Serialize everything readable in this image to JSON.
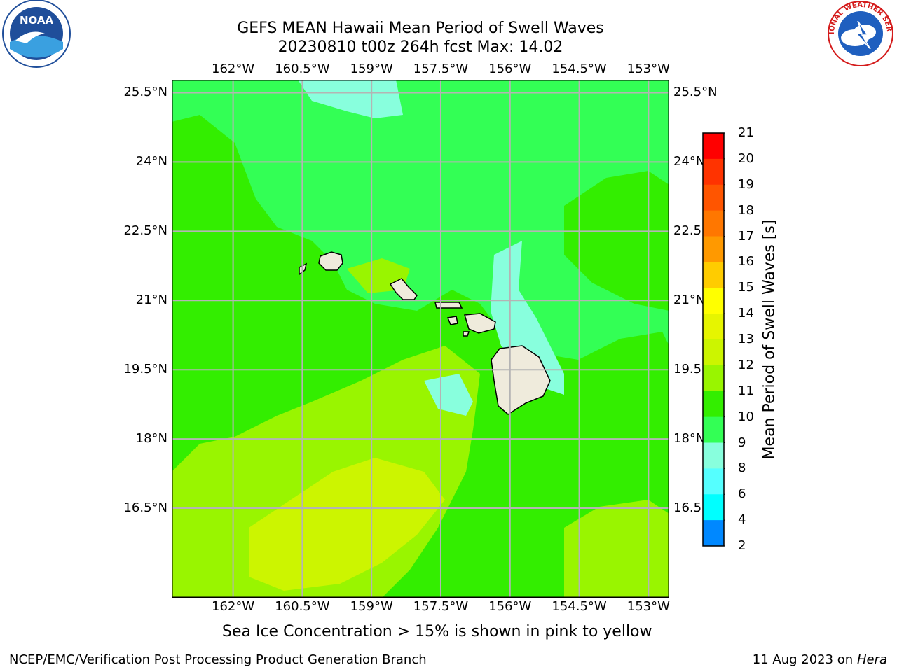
{
  "title_line1": "GEFS MEAN Hawaii Mean Period of Swell Waves",
  "title_line2": "20230810 t00z 264h fcst   Max: 14.02",
  "lon_ticks": [
    "162°W",
    "160.5°W",
    "159°W",
    "157.5°W",
    "156°W",
    "154.5°W",
    "153°W"
  ],
  "lat_ticks": [
    "25.5°N",
    "24°N",
    "22.5°N",
    "21°N",
    "19.5°N",
    "18°N",
    "16.5°N"
  ],
  "lon_values": [
    -162,
    -160.5,
    -159,
    -157.5,
    -156,
    -154.5,
    -153
  ],
  "lat_values": [
    25.5,
    24,
    22.5,
    21,
    19.5,
    18,
    16.5
  ],
  "colorbar": {
    "label": "Mean Period of Swell Waves [s]",
    "ticks": [
      "21",
      "20",
      "19",
      "18",
      "17",
      "16",
      "15",
      "14",
      "13",
      "12",
      "11",
      "10",
      "9",
      "8",
      "6",
      "4",
      "2"
    ],
    "colors": [
      "#ff0000",
      "#ff3300",
      "#ff5500",
      "#ff7700",
      "#ff9900",
      "#ffcc00",
      "#ffff00",
      "#e6f500",
      "#ccf500",
      "#99f500",
      "#33ee00",
      "#33ff55",
      "#88ffdd",
      "#55ffff",
      "#00ffff",
      "#0088ff",
      "#0000ff"
    ]
  },
  "field_colors": {
    "c10": "#88ffdd",
    "c11": "#33ff55",
    "c12": "#33ee00",
    "c13": "#99f500",
    "c14": "#ccf500",
    "land": "#efebdc",
    "grid": "#b4b4b4"
  },
  "note": "Sea Ice Concentration > 15% is shown in pink to yellow",
  "footer_left": "NCEP/EMC/Verification Post Processing Product Generation Branch",
  "footer_date": "11 Aug 2023 on",
  "footer_machine": "Hera",
  "logos": {
    "left": "NOAA",
    "right": "NATIONAL WEATHER SERVICE"
  }
}
